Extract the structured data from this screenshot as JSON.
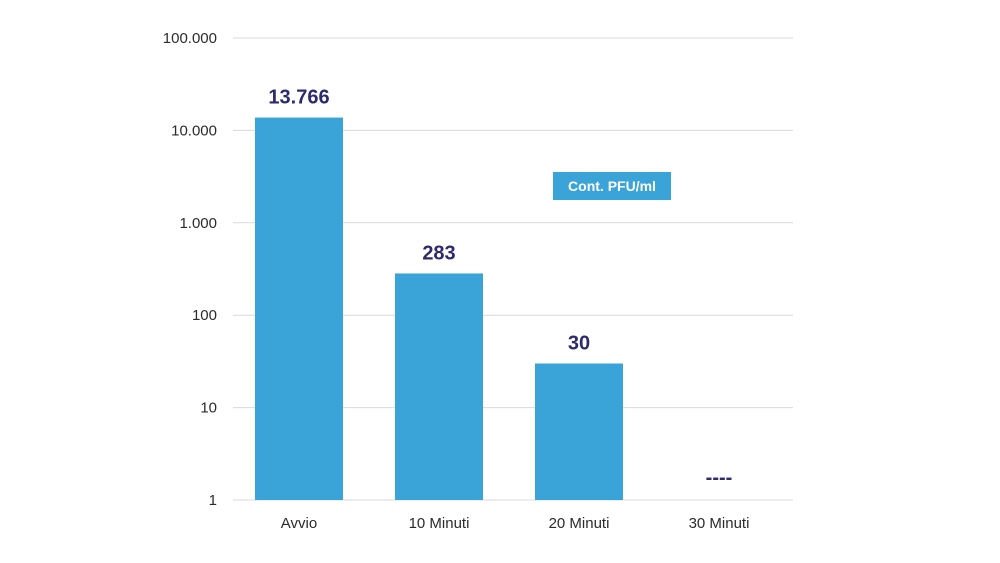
{
  "chart_data": {
    "type": "bar",
    "y_scale": "log10",
    "ylim": [
      1,
      100000
    ],
    "y_ticks": [
      {
        "value": 1,
        "label": "1"
      },
      {
        "value": 10,
        "label": "10"
      },
      {
        "value": 100,
        "label": "100"
      },
      {
        "value": 1000,
        "label": "1.000"
      },
      {
        "value": 10000,
        "label": "10.000"
      },
      {
        "value": 100000,
        "label": "100.000"
      }
    ],
    "categories": [
      "Avvio",
      "10 Minuti",
      "20 Minuti",
      "30 Minuti"
    ],
    "series": [
      {
        "name": "Cont. PFU/ml",
        "values": [
          13766,
          283,
          30,
          null
        ],
        "data_labels": [
          "13.766",
          "283",
          "30",
          "----"
        ]
      }
    ],
    "grid": true,
    "legend_position": "inside-top-right",
    "colors": {
      "bar": "#3aa3d8",
      "grid": "#d9d9d9",
      "data_label": "#2e2a6e",
      "legend_bg": "#3aa3d8",
      "legend_text": "#ffffff"
    }
  }
}
